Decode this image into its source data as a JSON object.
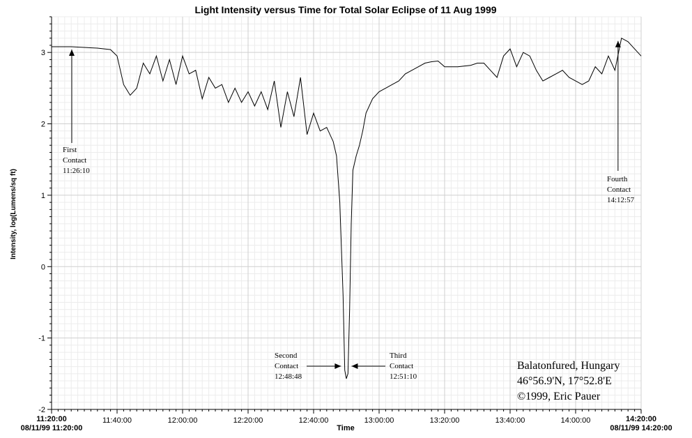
{
  "chart_data": {
    "type": "line",
    "title": "Light Intensity versus Time for Total Solar Eclipse of 11 Aug 1999",
    "xlabel": "Time",
    "ylabel": "Intensity, log(Lumens/sq ft)",
    "xlim": [
      "11:20:00",
      "14:20:00"
    ],
    "ylim": [
      -2,
      3.5
    ],
    "grid": true,
    "x_ticks": [
      "11:20:00",
      "11:40:00",
      "12:00:00",
      "12:20:00",
      "12:40:00",
      "13:00:00",
      "13:20:00",
      "13:40:00",
      "14:00:00",
      "14:20:00"
    ],
    "y_ticks": [
      "3",
      "2",
      "1",
      "0",
      "-1",
      "-2"
    ],
    "x_start_label": "08/11/99 11:20:00",
    "x_end_label": "08/11/99 14:20:00",
    "series": [
      {
        "x": [
          "11:20:00",
          "11:26:00",
          "11:30:00",
          "11:34:00",
          "11:38:00",
          "11:40:00",
          "11:42:00",
          "11:44:00",
          "11:46:00",
          "11:48:00",
          "11:50:00",
          "11:52:00",
          "11:54:00",
          "11:56:00",
          "11:58:00",
          "12:00:00",
          "12:02:00",
          "12:04:00",
          "12:06:00",
          "12:08:00",
          "12:10:00",
          "12:12:00",
          "12:14:00",
          "12:16:00",
          "12:18:00",
          "12:20:00",
          "12:22:00",
          "12:24:00",
          "12:26:00",
          "12:28:00",
          "12:30:00",
          "12:32:00",
          "12:34:00",
          "12:36:00",
          "12:38:00",
          "12:40:00",
          "12:42:00",
          "12:44:00",
          "12:46:00",
          "12:47:00",
          "12:48:00",
          "12:49:00",
          "12:49:30",
          "12:50:00",
          "12:50:30",
          "12:51:00",
          "12:51:30",
          "12:52:00",
          "12:53:00",
          "12:54:00",
          "12:55:00",
          "12:56:00",
          "12:58:00",
          "13:00:00",
          "13:02:00",
          "13:04:00",
          "13:06:00",
          "13:08:00",
          "13:10:00",
          "13:12:00",
          "13:14:00",
          "13:16:00",
          "13:18:00",
          "13:20:00",
          "13:24:00",
          "13:28:00",
          "13:30:00",
          "13:32:00",
          "13:34:00",
          "13:36:00",
          "13:38:00",
          "13:40:00",
          "13:42:00",
          "13:44:00",
          "13:46:00",
          "13:48:00",
          "13:50:00",
          "13:52:00",
          "13:54:00",
          "13:56:00",
          "13:58:00",
          "14:00:00",
          "14:02:00",
          "14:04:00",
          "14:06:00",
          "14:08:00",
          "14:10:00",
          "14:12:00",
          "14:14:00",
          "14:16:00",
          "14:18:00",
          "14:20:00"
        ],
        "y": [
          3.08,
          3.08,
          3.07,
          3.06,
          3.04,
          2.95,
          2.55,
          2.4,
          2.5,
          2.85,
          2.7,
          2.95,
          2.6,
          2.9,
          2.55,
          2.95,
          2.7,
          2.75,
          2.35,
          2.65,
          2.5,
          2.55,
          2.3,
          2.5,
          2.3,
          2.45,
          2.25,
          2.45,
          2.2,
          2.6,
          1.95,
          2.45,
          2.1,
          2.65,
          1.85,
          2.15,
          1.9,
          1.95,
          1.75,
          1.55,
          0.9,
          -0.4,
          -1.45,
          -1.57,
          -1.5,
          -0.6,
          0.6,
          1.35,
          1.55,
          1.7,
          1.9,
          2.15,
          2.35,
          2.45,
          2.5,
          2.55,
          2.6,
          2.7,
          2.75,
          2.8,
          2.85,
          2.87,
          2.88,
          2.8,
          2.8,
          2.82,
          2.85,
          2.85,
          2.75,
          2.65,
          2.95,
          3.05,
          2.8,
          3.0,
          2.95,
          2.75,
          2.6,
          2.65,
          2.7,
          2.75,
          2.65,
          2.6,
          2.55,
          2.6,
          2.8,
          2.7,
          2.95,
          2.75,
          3.2,
          3.15,
          3.05,
          2.95
        ]
      }
    ],
    "annotations": [
      {
        "lines": [
          "First",
          "Contact",
          "11:26:10"
        ],
        "time": "11:26:10"
      },
      {
        "lines": [
          "Second",
          "Contact",
          "12:48:48"
        ],
        "time": "12:48:48"
      },
      {
        "lines": [
          "Third",
          "Contact",
          "12:51:10"
        ],
        "time": "12:51:10"
      },
      {
        "lines": [
          "Fourth",
          "Contact",
          "14:12:57"
        ],
        "time": "14:12:57"
      }
    ],
    "info_lines": [
      "Balatonfured, Hungary",
      "46°56.9'N, 17°52.8'E",
      "©1999, Eric Pauer"
    ]
  }
}
